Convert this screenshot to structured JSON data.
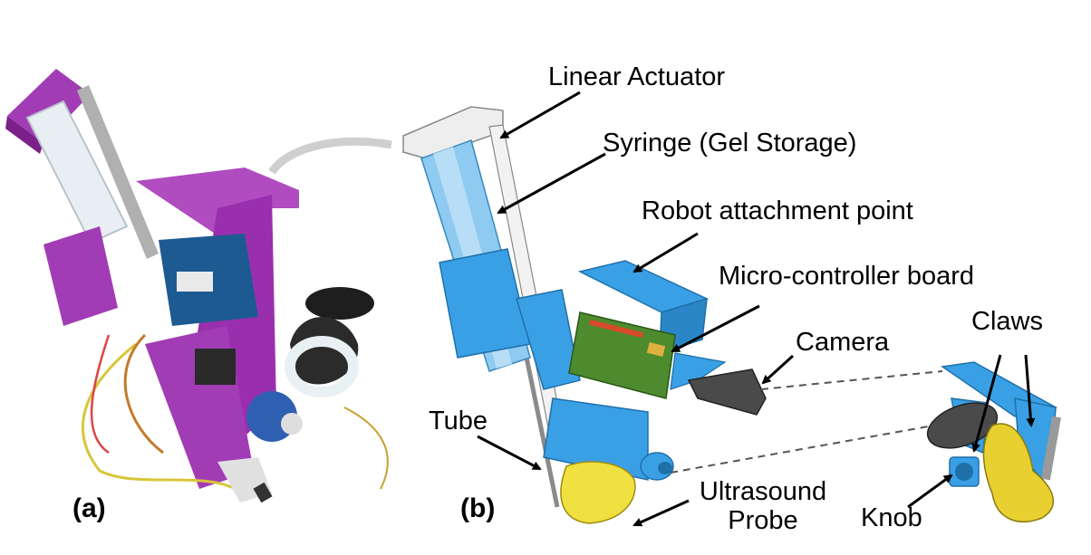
{
  "panels": {
    "a": "(a)",
    "b": "(b)"
  },
  "labels": {
    "linear_actuator": "Linear Actuator",
    "syringe": "Syringe (Gel Storage)",
    "robot_attachment": "Robot attachment point",
    "microcontroller": "Micro-controller board",
    "camera": "Camera",
    "claws": "Claws",
    "tube": "Tube",
    "ultrasound_line1": "Ultrasound",
    "ultrasound_line2": "Probe",
    "knob": "Knob"
  },
  "colors": {
    "purple_part": "#a23cb4",
    "blue_part": "#3aa0e6",
    "light_blue": "#8fcaf0",
    "yellow_probe": "#f0e040",
    "board_green": "#4e8a2e",
    "dark_gray": "#4a4a4a",
    "arrow": "#000000"
  }
}
